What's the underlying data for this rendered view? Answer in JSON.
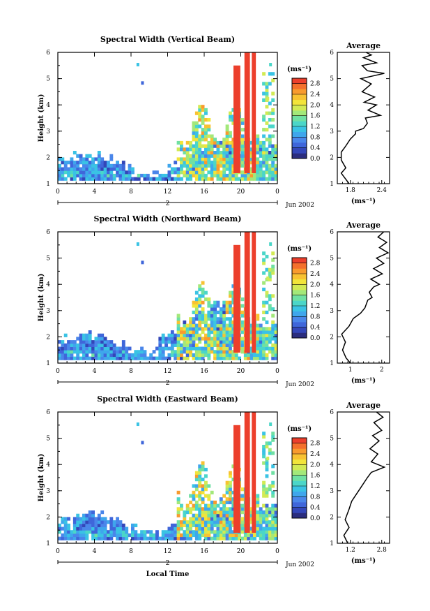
{
  "chart_data": [
    {
      "type": "heatmap",
      "title": "Spectral Width (Vertical Beam)",
      "xlabel": "",
      "ylabel": "Height (km)",
      "x_ticks": [
        "0",
        "4",
        "8",
        "12",
        "16",
        "20",
        "0"
      ],
      "y_ticks": [
        "1",
        "2",
        "3",
        "4",
        "5",
        "6"
      ],
      "ylim": [
        1,
        6
      ],
      "date_day": "2",
      "date_label": "Jun 2002",
      "colorbar": {
        "unit": "(ms⁻¹)",
        "ticks": [
          "2.8",
          "2.4",
          "2.0",
          "1.6",
          "1.2",
          "0.8",
          "0.4",
          "0.0"
        ],
        "range": [
          0.0,
          3.0
        ]
      },
      "profile": {
        "title": "Average",
        "xlabel": "(ms⁻¹)",
        "x_ticks": [
          "1.8",
          "2.4"
        ],
        "y_ticks": [
          "1",
          "2",
          "3",
          "4",
          "5",
          "6"
        ],
        "xlim": [
          1.7,
          2.5
        ],
        "points": [
          [
            1.88,
            1.0
          ],
          [
            1.82,
            1.2
          ],
          [
            1.76,
            1.4
          ],
          [
            1.83,
            1.6
          ],
          [
            1.76,
            1.9
          ],
          [
            1.76,
            2.2
          ],
          [
            1.82,
            2.4
          ],
          [
            1.9,
            2.7
          ],
          [
            1.98,
            2.9
          ],
          [
            1.98,
            3.0
          ],
          [
            2.1,
            3.1
          ],
          [
            2.16,
            3.3
          ],
          [
            2.13,
            3.5
          ],
          [
            2.36,
            3.6
          ],
          [
            2.17,
            3.8
          ],
          [
            2.3,
            4.0
          ],
          [
            2.11,
            4.1
          ],
          [
            2.27,
            4.3
          ],
          [
            2.08,
            4.5
          ],
          [
            2.22,
            4.8
          ],
          [
            2.06,
            5.0
          ],
          [
            2.42,
            5.2
          ],
          [
            2.16,
            5.3
          ],
          [
            2.08,
            5.5
          ],
          [
            2.3,
            5.6
          ],
          [
            2.1,
            5.8
          ],
          [
            2.22,
            5.9
          ],
          [
            2.14,
            6.0
          ]
        ]
      }
    },
    {
      "type": "heatmap",
      "title": "Spectral Width (Northward Beam)",
      "xlabel": "",
      "ylabel": "Height (km)",
      "x_ticks": [
        "0",
        "4",
        "8",
        "12",
        "16",
        "20",
        "0"
      ],
      "y_ticks": [
        "1",
        "2",
        "3",
        "4",
        "5",
        "6"
      ],
      "ylim": [
        1,
        6
      ],
      "date_day": "2",
      "date_label": "Jun 2002",
      "colorbar": {
        "unit": "(ms⁻¹)",
        "ticks": [
          "2.8",
          "2.4",
          "2.0",
          "1.6",
          "1.2",
          "0.8",
          "0.4",
          "0.0"
        ],
        "range": [
          0.0,
          3.0
        ]
      },
      "profile": {
        "title": "Average",
        "xlabel": "(ms⁻¹)",
        "x_ticks": [
          "1",
          "2"
        ],
        "y_ticks": [
          "1",
          "2",
          "3",
          "4",
          "5",
          "6"
        ],
        "xlim": [
          0.8,
          2.6
        ],
        "points": [
          [
            1.25,
            1.0
          ],
          [
            1.1,
            1.2
          ],
          [
            0.98,
            1.5
          ],
          [
            1.08,
            1.8
          ],
          [
            0.95,
            2.1
          ],
          [
            1.2,
            2.4
          ],
          [
            1.35,
            2.7
          ],
          [
            1.6,
            2.9
          ],
          [
            1.75,
            3.1
          ],
          [
            1.85,
            3.4
          ],
          [
            2.0,
            3.5
          ],
          [
            1.9,
            3.7
          ],
          [
            2.05,
            3.9
          ],
          [
            2.25,
            4.0
          ],
          [
            1.95,
            4.2
          ],
          [
            2.35,
            4.4
          ],
          [
            2.05,
            4.6
          ],
          [
            2.4,
            4.8
          ],
          [
            2.15,
            5.0
          ],
          [
            2.55,
            5.2
          ],
          [
            2.25,
            5.4
          ],
          [
            2.5,
            5.6
          ],
          [
            2.2,
            5.8
          ],
          [
            2.4,
            6.0
          ]
        ]
      }
    },
    {
      "type": "heatmap",
      "title": "Spectral Width (Eastward Beam)",
      "xlabel": "Local Time",
      "ylabel": "Height (km)",
      "x_ticks": [
        "0",
        "4",
        "8",
        "12",
        "16",
        "20",
        "0"
      ],
      "y_ticks": [
        "1",
        "2",
        "3",
        "4",
        "5",
        "6"
      ],
      "ylim": [
        1,
        6
      ],
      "date_day": "2",
      "date_label": "Jun 2002",
      "colorbar": {
        "unit": "(ms⁻¹)",
        "ticks": [
          "2.8",
          "2.4",
          "2.0",
          "1.6",
          "1.2",
          "0.8",
          "0.4",
          "0.0"
        ],
        "range": [
          0.0,
          3.0
        ]
      },
      "profile": {
        "title": "Average",
        "xlabel": "(ms⁻¹)",
        "x_ticks": [
          "1.2",
          "2.8"
        ],
        "y_ticks": [
          "1",
          "2",
          "3",
          "4",
          "5",
          "6"
        ],
        "xlim": [
          1.0,
          3.0
        ],
        "points": [
          [
            1.4,
            1.0
          ],
          [
            1.25,
            1.3
          ],
          [
            1.45,
            1.6
          ],
          [
            1.3,
            1.9
          ],
          [
            1.45,
            2.3
          ],
          [
            1.55,
            2.6
          ],
          [
            1.75,
            2.9
          ],
          [
            1.95,
            3.2
          ],
          [
            2.15,
            3.5
          ],
          [
            2.3,
            3.7
          ],
          [
            2.8,
            3.9
          ],
          [
            2.3,
            4.1
          ],
          [
            2.55,
            4.4
          ],
          [
            2.25,
            4.6
          ],
          [
            2.6,
            4.9
          ],
          [
            2.35,
            5.1
          ],
          [
            2.7,
            5.3
          ],
          [
            2.4,
            5.6
          ],
          [
            2.75,
            5.8
          ],
          [
            2.5,
            6.0
          ]
        ]
      }
    }
  ]
}
